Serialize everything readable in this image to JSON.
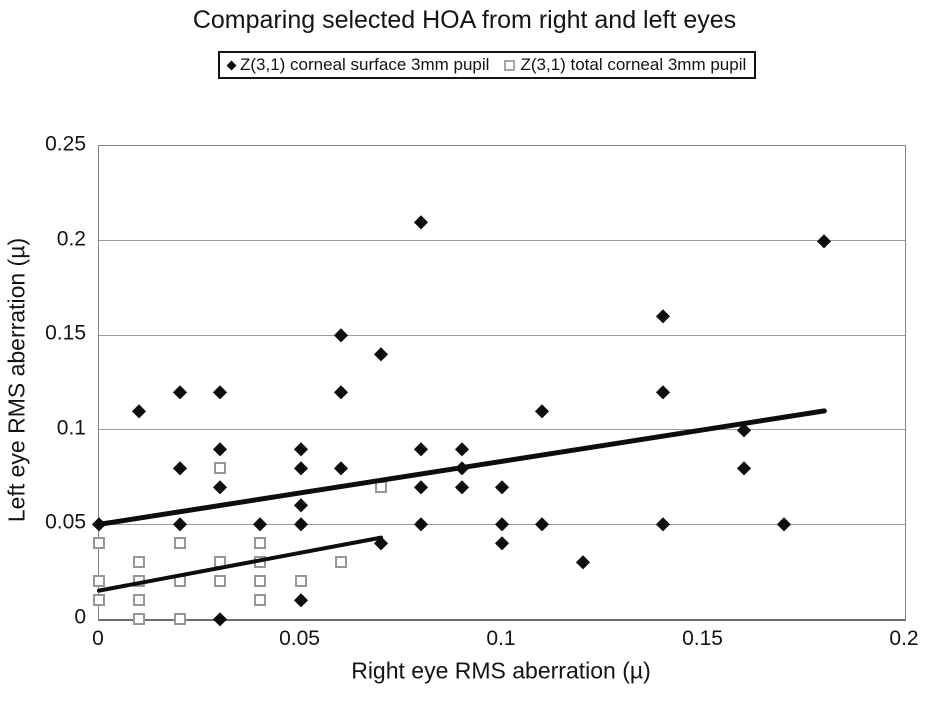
{
  "chart_data": {
    "type": "scatter",
    "title": "Comparing selected HOA from right and left eyes",
    "xlabel": "Right eye RMS aberration (µ)",
    "ylabel": "Left eye RMS aberration (µ)",
    "xlim": [
      0,
      0.2
    ],
    "ylim": [
      0,
      0.25
    ],
    "xticks": [
      {
        "value": 0,
        "label": "0"
      },
      {
        "value": 0.05,
        "label": "0.05"
      },
      {
        "value": 0.1,
        "label": "0.1"
      },
      {
        "value": 0.15,
        "label": "0.15"
      },
      {
        "value": 0.2,
        "label": "0.2"
      }
    ],
    "yticks": [
      {
        "value": 0,
        "label": "0"
      },
      {
        "value": 0.05,
        "label": "0.05"
      },
      {
        "value": 0.1,
        "label": "0.1"
      },
      {
        "value": 0.15,
        "label": "0.15"
      },
      {
        "value": 0.2,
        "label": "0.2"
      },
      {
        "value": 0.25,
        "label": "0.25"
      }
    ],
    "grid": "horizontal",
    "legend_position": "top",
    "series": [
      {
        "name": "Z(3,1) corneal surface 3mm pupil",
        "marker": "filled-diamond",
        "color": "#0e0e0e",
        "points": [
          [
            0,
            0.05
          ],
          [
            0.01,
            0.11
          ],
          [
            0.02,
            0.12
          ],
          [
            0.02,
            0.08
          ],
          [
            0.02,
            0.05
          ],
          [
            0.03,
            0.12
          ],
          [
            0.03,
            0.09
          ],
          [
            0.03,
            0.07
          ],
          [
            0.03,
            0
          ],
          [
            0.04,
            0.05
          ],
          [
            0.05,
            0.09
          ],
          [
            0.05,
            0.08
          ],
          [
            0.05,
            0.06
          ],
          [
            0.05,
            0.05
          ],
          [
            0.05,
            0.01
          ],
          [
            0.06,
            0.15
          ],
          [
            0.06,
            0.12
          ],
          [
            0.06,
            0.08
          ],
          [
            0.07,
            0.14
          ],
          [
            0.07,
            0.04
          ],
          [
            0.08,
            0.21
          ],
          [
            0.08,
            0.09
          ],
          [
            0.08,
            0.07
          ],
          [
            0.08,
            0.05
          ],
          [
            0.09,
            0.09
          ],
          [
            0.09,
            0.08
          ],
          [
            0.09,
            0.07
          ],
          [
            0.1,
            0.07
          ],
          [
            0.1,
            0.05
          ],
          [
            0.1,
            0.04
          ],
          [
            0.11,
            0.11
          ],
          [
            0.11,
            0.05
          ],
          [
            0.12,
            0.03
          ],
          [
            0.14,
            0.16
          ],
          [
            0.14,
            0.12
          ],
          [
            0.14,
            0.05
          ],
          [
            0.16,
            0.1
          ],
          [
            0.16,
            0.08
          ],
          [
            0.17,
            0.05
          ],
          [
            0.18,
            0.2
          ]
        ]
      },
      {
        "name": "Z(3,1) total corneal 3mm pupil",
        "marker": "open-square",
        "color": "#979797",
        "points": [
          [
            0,
            0.04
          ],
          [
            0,
            0.02
          ],
          [
            0,
            0.01
          ],
          [
            0.01,
            0.03
          ],
          [
            0.01,
            0.02
          ],
          [
            0.01,
            0.01
          ],
          [
            0.01,
            0
          ],
          [
            0.02,
            0.04
          ],
          [
            0.02,
            0.02
          ],
          [
            0.02,
            0
          ],
          [
            0.03,
            0.08
          ],
          [
            0.03,
            0.03
          ],
          [
            0.03,
            0.02
          ],
          [
            0.04,
            0.04
          ],
          [
            0.04,
            0.03
          ],
          [
            0.04,
            0.02
          ],
          [
            0.04,
            0.01
          ],
          [
            0.05,
            0.02
          ],
          [
            0.06,
            0.03
          ],
          [
            0.07,
            0.07
          ]
        ]
      }
    ],
    "trendlines": [
      {
        "series": 0,
        "x1": 0,
        "y1": 0.05,
        "x2": 0.18,
        "y2": 0.11,
        "stroke_width": 5,
        "color": "#0d0d0d"
      },
      {
        "series": 1,
        "x1": 0,
        "y1": 0.015,
        "x2": 0.07,
        "y2": 0.043,
        "stroke_width": 4,
        "color": "#0d0d0d"
      }
    ]
  }
}
